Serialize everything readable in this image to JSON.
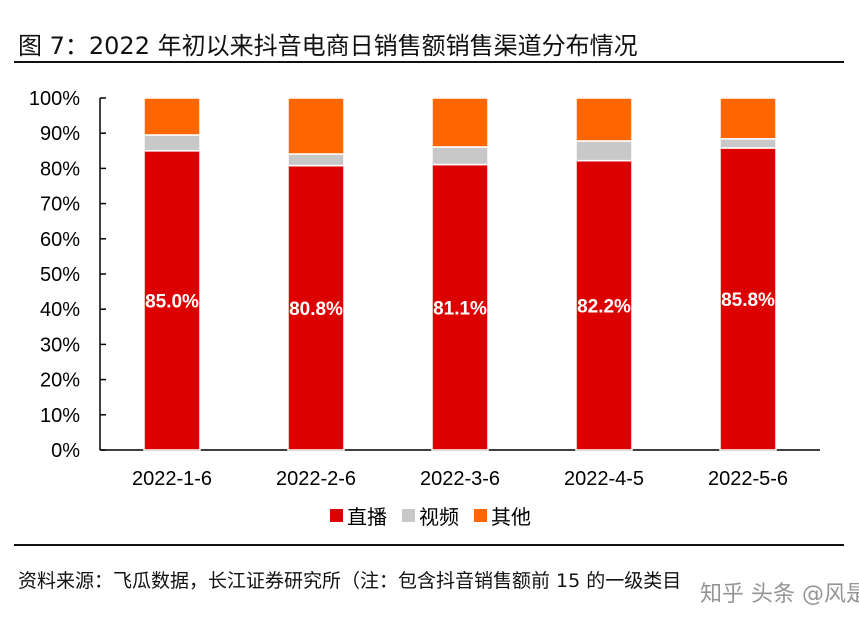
{
  "title": "图 7：2022 年初以来抖音电商日销售额销售渠道分布情况",
  "footnote": "资料来源：飞瓜数据，长江证券研究所（注：包含抖音销售额前 15 的一级类目",
  "watermark": "知乎 头条 @风是",
  "chart_data": {
    "type": "bar",
    "stacked": true,
    "percent": true,
    "categories": [
      "2022-1-6",
      "2022-2-6",
      "2022-3-6",
      "2022-4-5",
      "2022-5-6"
    ],
    "series": [
      {
        "name": "直播",
        "color": "#dd0000",
        "values": [
          85.0,
          80.8,
          81.1,
          82.2,
          85.8
        ],
        "labels": [
          "85.0%",
          "80.8%",
          "81.1%",
          "82.2%",
          "85.8%"
        ]
      },
      {
        "name": "视频",
        "color": "#c8c8c8",
        "values": [
          4.5,
          3.3,
          5.0,
          5.6,
          2.6
        ]
      },
      {
        "name": "其他",
        "color": "#ff6600",
        "values": [
          10.5,
          15.9,
          13.9,
          12.2,
          11.6
        ]
      }
    ],
    "ylim": [
      0,
      100
    ],
    "yticks": [
      "0%",
      "10%",
      "20%",
      "30%",
      "40%",
      "50%",
      "60%",
      "70%",
      "80%",
      "90%",
      "100%"
    ],
    "grid": false,
    "legend": "bottom"
  }
}
